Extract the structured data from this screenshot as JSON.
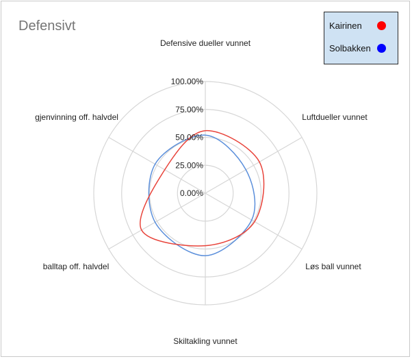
{
  "chart_data": {
    "type": "radar",
    "title": "Defensivt",
    "axes": [
      "Defensive dueller vunnet",
      "Luftdueller vunnet",
      "Løs ball vunnet",
      "Skiltakling vunnet",
      "balltap off. halvdel",
      "gjenvinning off. halvdel"
    ],
    "ticks": [
      "0.00%",
      "25.00%",
      "50.00%",
      "75.00%",
      "100.00%"
    ],
    "range": [
      0,
      100
    ],
    "series": [
      {
        "name": "Kairinen",
        "color": "#e8433a",
        "values": [
          56,
          56,
          51,
          47,
          66,
          42
        ]
      },
      {
        "name": "Solbakken",
        "color": "#5b8fdb",
        "values": [
          52,
          42,
          48,
          56,
          52,
          52
        ]
      }
    ],
    "legend": {
      "position": "top-right",
      "marker_colors": [
        "#ff0000",
        "#0000ff"
      ]
    }
  }
}
